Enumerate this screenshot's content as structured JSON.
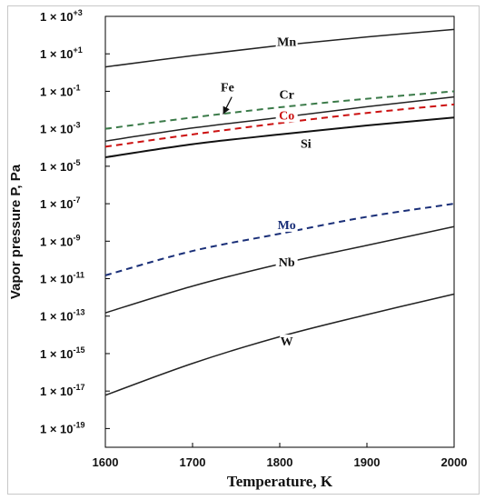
{
  "chart_data": {
    "type": "line",
    "xlabel": "Temperature, K",
    "ylabel": "Vapor pressure P, Pa",
    "xlim": [
      1600,
      2000
    ],
    "ylim": [
      1e-20,
      1000.0
    ],
    "yscale": "log",
    "x_ticks": [
      "1600",
      "1700",
      "1800",
      "1900",
      "2000"
    ],
    "y_ticks": [
      {
        "mantissa": "1 × 10",
        "exp": "+3"
      },
      {
        "mantissa": "1 × 10",
        "exp": "+1"
      },
      {
        "mantissa": "1 × 10",
        "exp": "-1"
      },
      {
        "mantissa": "1 × 10",
        "exp": "-3"
      },
      {
        "mantissa": "1 × 10",
        "exp": "-5"
      },
      {
        "mantissa": "1 × 10",
        "exp": "-7"
      },
      {
        "mantissa": "1 × 10",
        "exp": "-9"
      },
      {
        "mantissa": "1 × 10",
        "exp": "-11"
      },
      {
        "mantissa": "1 × 10",
        "exp": "-13"
      },
      {
        "mantissa": "1 × 10",
        "exp": "-15"
      },
      {
        "mantissa": "1 × 10",
        "exp": "-17"
      },
      {
        "mantissa": "1 × 10",
        "exp": "-19"
      }
    ],
    "y_tick_values": [
      1000.0,
      10.0,
      0.1,
      0.001,
      1e-05,
      1e-07,
      1e-09,
      1e-11,
      1e-13,
      1e-15,
      1e-17,
      1e-19
    ],
    "grid": false,
    "series": [
      {
        "name": "Mn",
        "color": "#222222",
        "dash": "solid",
        "width": 1.5,
        "x": [
          1600,
          1700,
          1800,
          1900,
          2000
        ],
        "y": [
          2.0,
          8.0,
          28.0,
          80.0,
          200.0
        ],
        "label_at": [
          1808,
          30.0
        ]
      },
      {
        "name": "Cr",
        "color": "#3a7a48",
        "dash": "dashed",
        "width": 2,
        "x": [
          1600,
          1700,
          1800,
          1900,
          2000
        ],
        "y": [
          0.001,
          0.004,
          0.014,
          0.04,
          0.1
        ],
        "label_at": [
          1808,
          0.045
        ]
      },
      {
        "name": "Fe",
        "color": "#222222",
        "dash": "solid",
        "width": 1.5,
        "x": [
          1600,
          1700,
          1800,
          1900,
          2000
        ],
        "y": [
          0.00022,
          0.0011,
          0.004,
          0.015,
          0.05
        ],
        "label_at": [
          1740,
          0.11
        ]
      },
      {
        "name": "Co",
        "color": "#cc1111",
        "dash": "dashed",
        "width": 2,
        "x": [
          1600,
          1700,
          1800,
          1900,
          2000
        ],
        "y": [
          0.00011,
          0.0005,
          0.002,
          0.007,
          0.02
        ],
        "label_at": [
          1808,
          0.0035
        ]
      },
      {
        "name": "Si",
        "color": "#111111",
        "dash": "solid",
        "width": 2,
        "x": [
          1600,
          1700,
          1800,
          1900,
          2000
        ],
        "y": [
          3e-05,
          0.00015,
          0.0005,
          0.0015,
          0.004
        ],
        "label_at": [
          1830,
          0.00011
        ]
      },
      {
        "name": "Mo",
        "color": "#1a2f78",
        "dash": "dashed",
        "width": 2,
        "x": [
          1600,
          1700,
          1800,
          1900,
          2000
        ],
        "y": [
          1.5e-11,
          3e-10,
          2.5e-09,
          2e-08,
          1e-07
        ],
        "label_at": [
          1808,
          5e-09
        ]
      },
      {
        "name": "Nb",
        "color": "#222222",
        "dash": "solid",
        "width": 1.5,
        "x": [
          1600,
          1700,
          1800,
          1900,
          2000
        ],
        "y": [
          1.5e-13,
          4e-12,
          6e-11,
          6e-10,
          6e-09
        ],
        "label_at": [
          1808,
          5e-11
        ]
      },
      {
        "name": "W",
        "color": "#222222",
        "dash": "solid",
        "width": 1.5,
        "x": [
          1600,
          1700,
          1800,
          1900,
          2000
        ],
        "y": [
          6e-18,
          3e-16,
          8e-15,
          1.2e-13,
          1.5e-12
        ],
        "label_at": [
          1808,
          3e-15
        ]
      }
    ],
    "annotations": [
      {
        "type": "arrow",
        "from_series": "Fe",
        "from": [
          1745,
          0.05
        ],
        "to": [
          1735,
          0.006
        ]
      }
    ]
  }
}
